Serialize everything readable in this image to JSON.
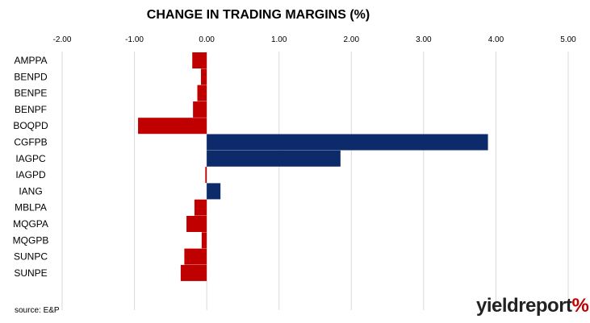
{
  "chart_data": {
    "type": "bar",
    "orientation": "horizontal",
    "title": "CHANGE IN TRADING MARGINS (%)",
    "categories": [
      "AMPPA",
      "BENPD",
      "BENPE",
      "BENPF",
      "BOQPD",
      "CGFPB",
      "IAGPC",
      "IAGPD",
      "IANG",
      "MBLPA",
      "MQGPA",
      "MQGPB",
      "SUNPC",
      "SUNPE"
    ],
    "values": [
      -0.2,
      -0.08,
      -0.13,
      -0.19,
      -0.95,
      3.89,
      1.85,
      -0.02,
      0.19,
      -0.17,
      -0.28,
      -0.07,
      -0.31,
      -0.36
    ],
    "xlim": [
      -2.0,
      5.0
    ],
    "x_ticks": [
      "-2.00",
      "-1.00",
      "0.00",
      "1.00",
      "2.00",
      "3.00",
      "4.00",
      "5.00"
    ],
    "x_tick_values": [
      -2,
      -1,
      0,
      1,
      2,
      3,
      4,
      5
    ],
    "axis_position": "top",
    "grid": true,
    "colors": {
      "negative": "#c00000",
      "positive": "#0d2a6b",
      "grid": "#d9d9d9"
    }
  },
  "footer": {
    "source": "source: E&P",
    "brand_name": "yieldreport",
    "brand_symbol": "%"
  }
}
